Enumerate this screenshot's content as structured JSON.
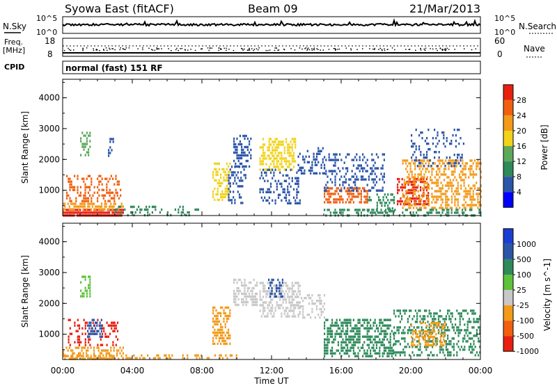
{
  "header": {
    "station": "Syowa East (fitACF)",
    "beam": "Beam 09",
    "date": "21/Mar/2013"
  },
  "side_labels": {
    "nsky": "N.Sky",
    "nsearch": "N.Search",
    "freq_line1": "Freq.",
    "freq_line2": "[MHz]",
    "nave": "Nave",
    "cpid": "CPID",
    "cpid_value": "normal (fast) 151 RF"
  },
  "strip_ticks": {
    "noise_top": "10^5",
    "noise_bottom": "10^0",
    "noise_right_top": "10^5",
    "noise_right_bottom": "10^0",
    "freq_top": "18",
    "freq_bottom": "8",
    "nave_top": "60",
    "nave_bottom": "0"
  },
  "chart_data": [
    {
      "type": "heatmap",
      "name": "power",
      "ylabel": "Slant Range [km]",
      "xlabel": "Time UT",
      "x_ticks": [
        "00:00",
        "04:00",
        "08:00",
        "12:00",
        "16:00",
        "20:00",
        "00:00"
      ],
      "y_ticks": [
        "1000",
        "2000",
        "3000",
        "4000"
      ],
      "xlim_hours": [
        0,
        24
      ],
      "ylim_km": [
        180,
        4600
      ],
      "colorbar": {
        "label": "Power [dB]",
        "ticks": [
          "4",
          "8",
          "12",
          "16",
          "20",
          "24",
          "28"
        ],
        "colors": [
          "#0000ff",
          "#2c55a8",
          "#2e8a5b",
          "#5ea85a",
          "#f2d21a",
          "#f29a1a",
          "#f06010",
          "#e82010"
        ]
      },
      "regions": [
        {
          "t0": 0.0,
          "t1": 3.5,
          "r0": 200,
          "r1": 400,
          "color": "#e82010",
          "density": 0.9
        },
        {
          "t0": 0.0,
          "t1": 3.5,
          "r0": 400,
          "r1": 600,
          "color": "#f29a1a",
          "density": 0.6
        },
        {
          "t0": 0.2,
          "t1": 3.3,
          "r0": 600,
          "r1": 1500,
          "color": "#f06010",
          "density": 0.35
        },
        {
          "t0": 1.0,
          "t1": 1.6,
          "r0": 2100,
          "r1": 2900,
          "color": "#5ea85a",
          "density": 0.5
        },
        {
          "t0": 2.6,
          "t1": 3.0,
          "r0": 2100,
          "r1": 2700,
          "color": "#2c55a8",
          "density": 0.4
        },
        {
          "t0": 3.0,
          "t1": 7.8,
          "r0": 200,
          "r1": 500,
          "color": "#2e8a5b",
          "density": 0.18
        },
        {
          "t0": 8.6,
          "t1": 9.6,
          "r0": 700,
          "r1": 1900,
          "color": "#f2d21a",
          "density": 0.5
        },
        {
          "t0": 9.8,
          "t1": 10.8,
          "r0": 1800,
          "r1": 2800,
          "color": "#2c55a8",
          "density": 0.45
        },
        {
          "t0": 9.5,
          "t1": 10.5,
          "r0": 600,
          "r1": 1800,
          "color": "#2c55a8",
          "density": 0.3
        },
        {
          "t0": 11.3,
          "t1": 13.4,
          "r0": 1700,
          "r1": 2700,
          "color": "#f2d21a",
          "density": 0.5
        },
        {
          "t0": 11.3,
          "t1": 13.6,
          "r0": 600,
          "r1": 1700,
          "color": "#2c55a8",
          "density": 0.3
        },
        {
          "t0": 13.5,
          "t1": 15.0,
          "r0": 1500,
          "r1": 2400,
          "color": "#2c55a8",
          "density": 0.35
        },
        {
          "t0": 15.0,
          "t1": 17.5,
          "r0": 600,
          "r1": 1100,
          "color": "#f06010",
          "density": 0.6
        },
        {
          "t0": 15.0,
          "t1": 18.5,
          "r0": 1000,
          "r1": 2200,
          "color": "#2c55a8",
          "density": 0.35
        },
        {
          "t0": 17.5,
          "t1": 19.0,
          "r0": 300,
          "r1": 900,
          "color": "#2e8a5b",
          "density": 0.3
        },
        {
          "t0": 19.2,
          "t1": 21.0,
          "r0": 500,
          "r1": 1400,
          "color": "#e82010",
          "density": 0.5
        },
        {
          "t0": 19.5,
          "t1": 24.0,
          "r0": 400,
          "r1": 2000,
          "color": "#f29a1a",
          "density": 0.45
        },
        {
          "t0": 20.0,
          "t1": 23.0,
          "r0": 1800,
          "r1": 3000,
          "color": "#2c55a8",
          "density": 0.2
        },
        {
          "t0": 15.0,
          "t1": 24.0,
          "r0": 200,
          "r1": 400,
          "color": "#2e8a5b",
          "density": 0.4
        }
      ]
    },
    {
      "type": "heatmap",
      "name": "velocity",
      "ylabel": "Slant Range [km]",
      "xlabel": "Time UT",
      "x_ticks": [
        "00:00",
        "04:00",
        "08:00",
        "12:00",
        "16:00",
        "20:00",
        "00:00"
      ],
      "y_ticks": [
        "1000",
        "2000",
        "3000",
        "4000"
      ],
      "xlim_hours": [
        0,
        24
      ],
      "ylim_km": [
        180,
        4600
      ],
      "colorbar": {
        "label": "Velocity [m s^-1]",
        "ticks": [
          "1000",
          "500",
          "100",
          "25",
          "-25",
          "-100",
          "-500",
          "-1000"
        ],
        "colors": [
          "#1a3fd0",
          "#2c55a8",
          "#2e8a5b",
          "#5ec23a",
          "#c8c8c8",
          "#f29a1a",
          "#f06010",
          "#e82010"
        ]
      },
      "regions": [
        {
          "t0": 0.0,
          "t1": 3.5,
          "r0": 200,
          "r1": 600,
          "color": "#f29a1a",
          "density": 0.45
        },
        {
          "t0": 0.3,
          "t1": 3.2,
          "r0": 600,
          "r1": 1500,
          "color": "#e82010",
          "density": 0.25
        },
        {
          "t0": 1.4,
          "t1": 2.2,
          "r0": 900,
          "r1": 1500,
          "color": "#2c55a8",
          "density": 0.5
        },
        {
          "t0": 1.0,
          "t1": 1.6,
          "r0": 2200,
          "r1": 2900,
          "color": "#5ec23a",
          "density": 0.45
        },
        {
          "t0": 8.6,
          "t1": 9.6,
          "r0": 700,
          "r1": 1900,
          "color": "#f29a1a",
          "density": 0.6
        },
        {
          "t0": 9.8,
          "t1": 11.2,
          "r0": 1900,
          "r1": 2800,
          "color": "#c8c8c8",
          "density": 0.5
        },
        {
          "t0": 11.3,
          "t1": 13.6,
          "r0": 1600,
          "r1": 2700,
          "color": "#c8c8c8",
          "density": 0.5
        },
        {
          "t0": 11.8,
          "t1": 12.6,
          "r0": 2200,
          "r1": 2800,
          "color": "#2c55a8",
          "density": 0.5
        },
        {
          "t0": 13.5,
          "t1": 15.0,
          "r0": 1500,
          "r1": 2300,
          "color": "#c8c8c8",
          "density": 0.3
        },
        {
          "t0": 15.0,
          "t1": 19.0,
          "r0": 300,
          "r1": 1500,
          "color": "#2e8a5b",
          "density": 0.5
        },
        {
          "t0": 19.0,
          "t1": 24.0,
          "r0": 300,
          "r1": 1800,
          "color": "#2e8a5b",
          "density": 0.4
        },
        {
          "t0": 20.0,
          "t1": 22.0,
          "r0": 600,
          "r1": 1400,
          "color": "#f29a1a",
          "density": 0.45
        },
        {
          "t0": 0.0,
          "t1": 10.0,
          "r0": 200,
          "r1": 350,
          "color": "#f29a1a",
          "density": 0.3
        }
      ]
    }
  ]
}
